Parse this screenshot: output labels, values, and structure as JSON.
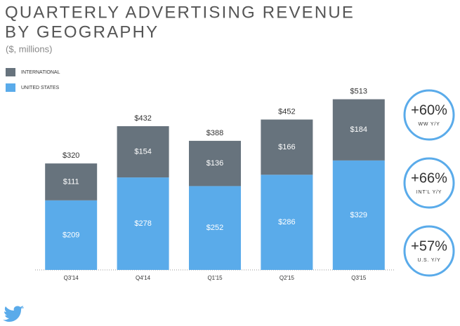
{
  "chart_data": {
    "type": "bar",
    "stacked": true,
    "title": [
      "QUARTERLY ADVERTISING REVENUE",
      "BY GEOGRAPHY"
    ],
    "subtitle": "($, millions)",
    "categories": [
      "Q3'14",
      "Q4'14",
      "Q1'15",
      "Q2'15",
      "Q3'15"
    ],
    "series": [
      {
        "name": "UNITED STATES",
        "color": "#5aabea",
        "values": [
          209,
          278,
          252,
          286,
          329
        ],
        "value_labels": [
          "$209",
          "$278",
          "$252",
          "$286",
          "$329"
        ]
      },
      {
        "name": "INTERNATIONAL",
        "color": "#67737d",
        "values": [
          111,
          154,
          136,
          166,
          184
        ],
        "value_labels": [
          "$111",
          "$154",
          "$136",
          "$166",
          "$184"
        ]
      }
    ],
    "totals": [
      320,
      432,
      388,
      452,
      513
    ],
    "total_labels": [
      "$320",
      "$432",
      "$388",
      "$452",
      "$513"
    ],
    "ylim": [
      0,
      550
    ],
    "annotations": [
      {
        "value": "+60%",
        "label": "WW Y/Y"
      },
      {
        "value": "+66%",
        "label": "INT'L Y/Y"
      },
      {
        "value": "+57%",
        "label": "U.S. Y/Y"
      }
    ],
    "annotation_color": "#5aabea"
  }
}
